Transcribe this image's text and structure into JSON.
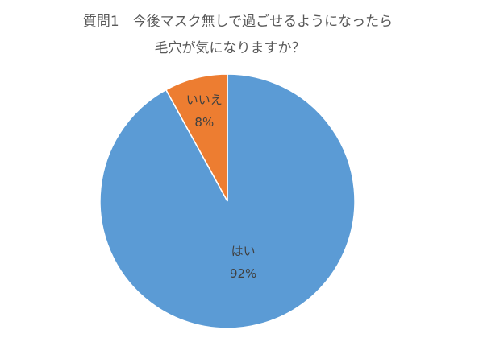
{
  "chart_data": {
    "type": "pie",
    "title": [
      "質問1　今後マスク無しで過ごせるようになったら",
      "毛穴が気になりますか？"
    ],
    "categories": [
      "はい",
      "いいえ"
    ],
    "values": [
      92,
      8
    ],
    "value_labels": [
      "92%",
      "8%"
    ],
    "colors": [
      "#5b9bd5",
      "#ed7d31"
    ]
  }
}
